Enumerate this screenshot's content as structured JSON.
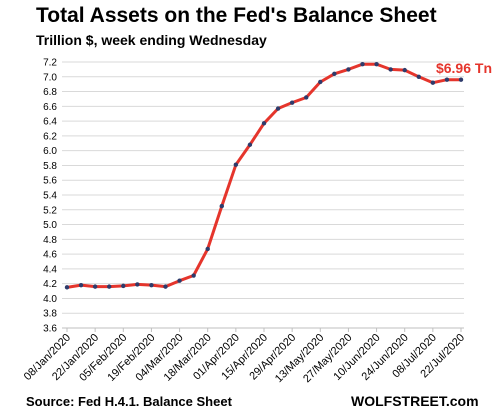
{
  "chart_data": {
    "type": "line",
    "title": "Total Assets on the Fed's Balance Sheet",
    "subtitle": "Trillion $, week ending Wednesday",
    "source": "Source: Fed H.4.1. Balance Sheet",
    "brand": "WOLFSTREET.com",
    "annotation": "$6.96 Tn",
    "ylim": [
      3.6,
      7.2
    ],
    "y_ticks": [
      "7.2",
      "7.0",
      "6.8",
      "6.6",
      "6.4",
      "6.2",
      "6.0",
      "5.8",
      "5.6",
      "5.4",
      "5.2",
      "5.0",
      "4.8",
      "4.6",
      "4.4",
      "4.2",
      "4.0",
      "3.8",
      "3.6"
    ],
    "x_tick_labels": [
      "08/Jan/2020",
      "22/Jan/2020",
      "05/Feb/2020",
      "19/Feb/2020",
      "04/Mar/2020",
      "18/Mar/2020",
      "01/Apr/2020",
      "15/Apr/2020",
      "29/Apr/2020",
      "13/May/2020",
      "27/May/2020",
      "10/Jun/2020",
      "24/Jun/2020",
      "08/Jul/2020",
      "22/Jul/2020"
    ],
    "grid": "horizontal",
    "series": [
      {
        "values": [
          4.15,
          4.18,
          4.16,
          4.16,
          4.17,
          4.19,
          4.18,
          4.16,
          4.24,
          4.31,
          4.67,
          5.25,
          5.81,
          6.08,
          6.37,
          6.57,
          6.65,
          6.72,
          6.93,
          7.04,
          7.1,
          7.17,
          7.17,
          7.1,
          7.09,
          7.0,
          6.92,
          6.96,
          6.96
        ],
        "color": "#e5352c"
      }
    ],
    "marker_color": "#2e3b6b"
  }
}
